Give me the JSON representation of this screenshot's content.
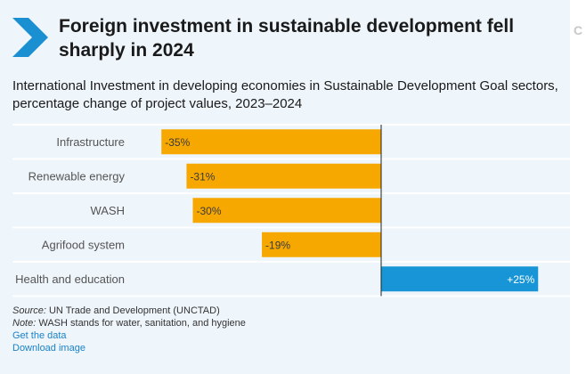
{
  "header": {
    "title": "Foreign investment in sustainable development fell sharply in 2024",
    "subtitle": "International Investment in developing economies in Sustainable Development Goal sectors, percentage change of project values, 2023–2024"
  },
  "colors": {
    "negative": "#f7a800",
    "positive": "#1795d6",
    "accent": "#1a8fd1",
    "background": "#eef5fb"
  },
  "chart_data": {
    "type": "bar",
    "orientation": "horizontal",
    "categories": [
      "Infrastructure",
      "Renewable energy",
      "WASH",
      "Agrifood system",
      "Health and education"
    ],
    "values": [
      -35,
      -31,
      -30,
      -19,
      25
    ],
    "value_labels": [
      "-35%",
      "-31%",
      "-30%",
      "-19%",
      "+25%"
    ],
    "unit": "%",
    "xlim": [
      -35,
      25
    ],
    "grid": false,
    "legend": "none"
  },
  "footer": {
    "source_label": "Source:",
    "source_text": "UN Trade and Development (UNCTAD)",
    "note_label": "Note:",
    "note_text": "WASH stands for water, sanitation, and hygiene",
    "get_data": "Get the data",
    "download": "Download image"
  }
}
